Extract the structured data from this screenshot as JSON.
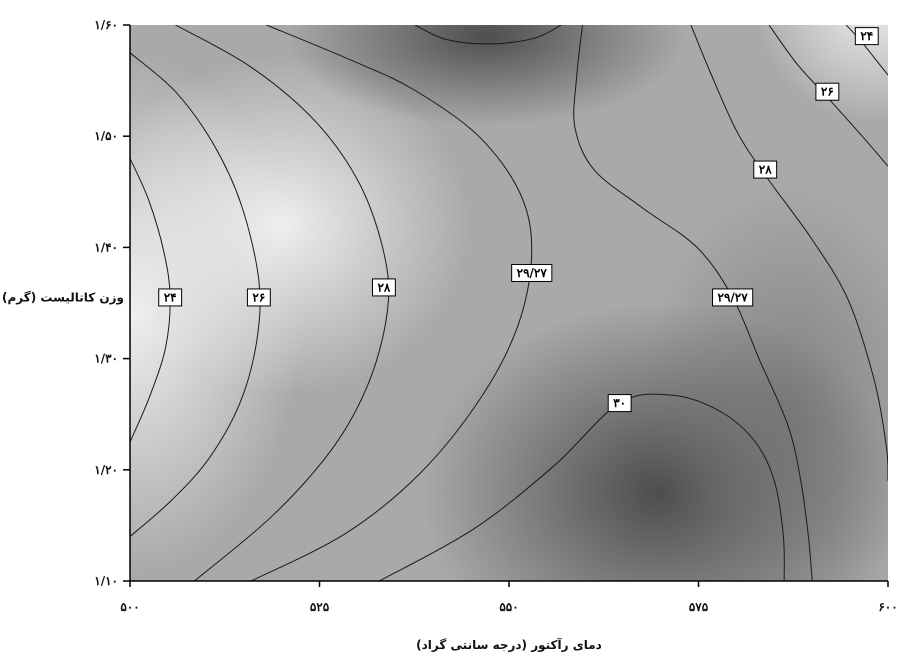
{
  "chart_data": {
    "type": "contour",
    "xlabel": "دمای رآکتور (درجه سانتی گراد)",
    "ylabel": "وزن کاتالیست (گرم)",
    "xlim": [
      500,
      600
    ],
    "ylim": [
      1.1,
      1.6
    ],
    "x_ticks": [
      {
        "value": 500,
        "label": "۵۰۰"
      },
      {
        "value": 525,
        "label": "۵۲۵"
      },
      {
        "value": 550,
        "label": "۵۵۰"
      },
      {
        "value": 575,
        "label": "۵۷۵"
      },
      {
        "value": 600,
        "label": "۶۰۰"
      }
    ],
    "y_ticks": [
      {
        "value": 1.1,
        "label": "۱/۱۰"
      },
      {
        "value": 1.2,
        "label": "۱/۲۰"
      },
      {
        "value": 1.3,
        "label": "۱/۳۰"
      },
      {
        "value": 1.4,
        "label": "۱/۴۰"
      },
      {
        "value": 1.5,
        "label": "۱/۵۰"
      },
      {
        "value": 1.6,
        "label": "۱/۶۰"
      }
    ],
    "contours": [
      {
        "id": "c24-left",
        "level": 24,
        "label": "۲۴",
        "label_at": [
          505.3,
          1.355
        ],
        "points": [
          [
            500.0,
            1.48
          ],
          [
            502.5,
            1.442
          ],
          [
            504.5,
            1.395
          ],
          [
            505.3,
            1.355
          ],
          [
            504.7,
            1.31
          ],
          [
            502.6,
            1.266
          ],
          [
            500.0,
            1.225
          ]
        ]
      },
      {
        "id": "c26-left",
        "level": 26,
        "label": "۲۶",
        "label_at": [
          517.0,
          1.355
        ],
        "points": [
          [
            500.0,
            1.575
          ],
          [
            506.0,
            1.54
          ],
          [
            511.0,
            1.493
          ],
          [
            514.7,
            1.438
          ],
          [
            517.0,
            1.37
          ],
          [
            516.7,
            1.315
          ],
          [
            514.5,
            1.26
          ],
          [
            510.4,
            1.21
          ],
          [
            505.4,
            1.172
          ],
          [
            500.0,
            1.14
          ]
        ]
      },
      {
        "id": "c28-left",
        "level": 28,
        "label": "۲۸",
        "label_at": [
          533.5,
          1.364
        ],
        "points": [
          [
            506.0,
            1.6
          ],
          [
            516.0,
            1.562
          ],
          [
            524.5,
            1.513
          ],
          [
            530.3,
            1.457
          ],
          [
            533.5,
            1.395
          ],
          [
            534.0,
            1.345
          ],
          [
            531.7,
            1.282
          ],
          [
            527.0,
            1.222
          ],
          [
            519.0,
            1.16
          ],
          [
            508.5,
            1.1
          ]
        ]
      },
      {
        "id": "c2927-left",
        "level": 29.27,
        "label": "۲۹/۲۷",
        "label_at": [
          553.0,
          1.377
        ],
        "points": [
          [
            518.0,
            1.6
          ],
          [
            529.3,
            1.568
          ],
          [
            537.4,
            1.542
          ],
          [
            546.0,
            1.5
          ],
          [
            551.5,
            1.448
          ],
          [
            553.0,
            1.395
          ],
          [
            551.2,
            1.33
          ],
          [
            546.3,
            1.265
          ],
          [
            538.3,
            1.197
          ],
          [
            528.5,
            1.143
          ],
          [
            516.0,
            1.1
          ]
        ]
      },
      {
        "id": "c29-top",
        "level": 29,
        "label": "",
        "label_at": [
          549.0,
          1.59
        ],
        "points": [
          [
            537.6,
            1.6
          ],
          [
            541.7,
            1.587
          ],
          [
            547.5,
            1.583
          ],
          [
            553.3,
            1.588
          ],
          [
            556.9,
            1.6
          ]
        ]
      },
      {
        "id": "c2927-right",
        "level": 29.27,
        "label": "۲۹/۲۷",
        "label_at": [
          579.5,
          1.355
        ],
        "points": [
          [
            559.7,
            1.6
          ],
          [
            558.9,
            1.552
          ],
          [
            558.7,
            1.508
          ],
          [
            561.2,
            1.47
          ],
          [
            567.5,
            1.436
          ],
          [
            574.8,
            1.4
          ],
          [
            579.5,
            1.355
          ],
          [
            583.1,
            1.298
          ],
          [
            586.8,
            1.24
          ],
          [
            588.5,
            1.19
          ],
          [
            589.5,
            1.14
          ],
          [
            590.0,
            1.1
          ]
        ]
      },
      {
        "id": "c28-right",
        "level": 28,
        "label": "۲۸",
        "label_at": [
          583.8,
          1.47
        ],
        "points": [
          [
            574.0,
            1.6
          ],
          [
            576.4,
            1.56
          ],
          [
            580.0,
            1.505
          ],
          [
            583.8,
            1.465
          ],
          [
            590.0,
            1.407
          ],
          [
            594.8,
            1.352
          ],
          [
            598.2,
            1.28
          ],
          [
            599.8,
            1.22
          ],
          [
            600.0,
            1.19
          ]
        ]
      },
      {
        "id": "c26-right",
        "level": 26,
        "label": "۲۶",
        "label_at": [
          592.0,
          1.54
        ],
        "points": [
          [
            584.3,
            1.6
          ],
          [
            588.0,
            1.565
          ],
          [
            592.0,
            1.535
          ],
          [
            596.6,
            1.5
          ],
          [
            600.0,
            1.473
          ]
        ]
      },
      {
        "id": "c24-right",
        "level": 24,
        "label": "۲۴",
        "label_at": [
          597.2,
          1.59
        ],
        "points": [
          [
            594.5,
            1.6
          ],
          [
            596.5,
            1.585
          ],
          [
            598.6,
            1.567
          ],
          [
            600.0,
            1.555
          ]
        ]
      },
      {
        "id": "c30",
        "level": 30,
        "label": "۳۰",
        "label_at": [
          564.6,
          1.26
        ],
        "points": [
          [
            532.9,
            1.1
          ],
          [
            545.4,
            1.147
          ],
          [
            556.0,
            1.204
          ],
          [
            564.6,
            1.26
          ],
          [
            571.6,
            1.267
          ],
          [
            578.0,
            1.252
          ],
          [
            582.5,
            1.225
          ],
          [
            585.0,
            1.19
          ],
          [
            586.2,
            1.14
          ],
          [
            586.3,
            1.1
          ]
        ]
      }
    ],
    "legend": "none",
    "grid": false,
    "colors": {
      "background_light": "#e6e6e6",
      "background_dark": "#555555",
      "line": "#1a1a1a"
    }
  }
}
